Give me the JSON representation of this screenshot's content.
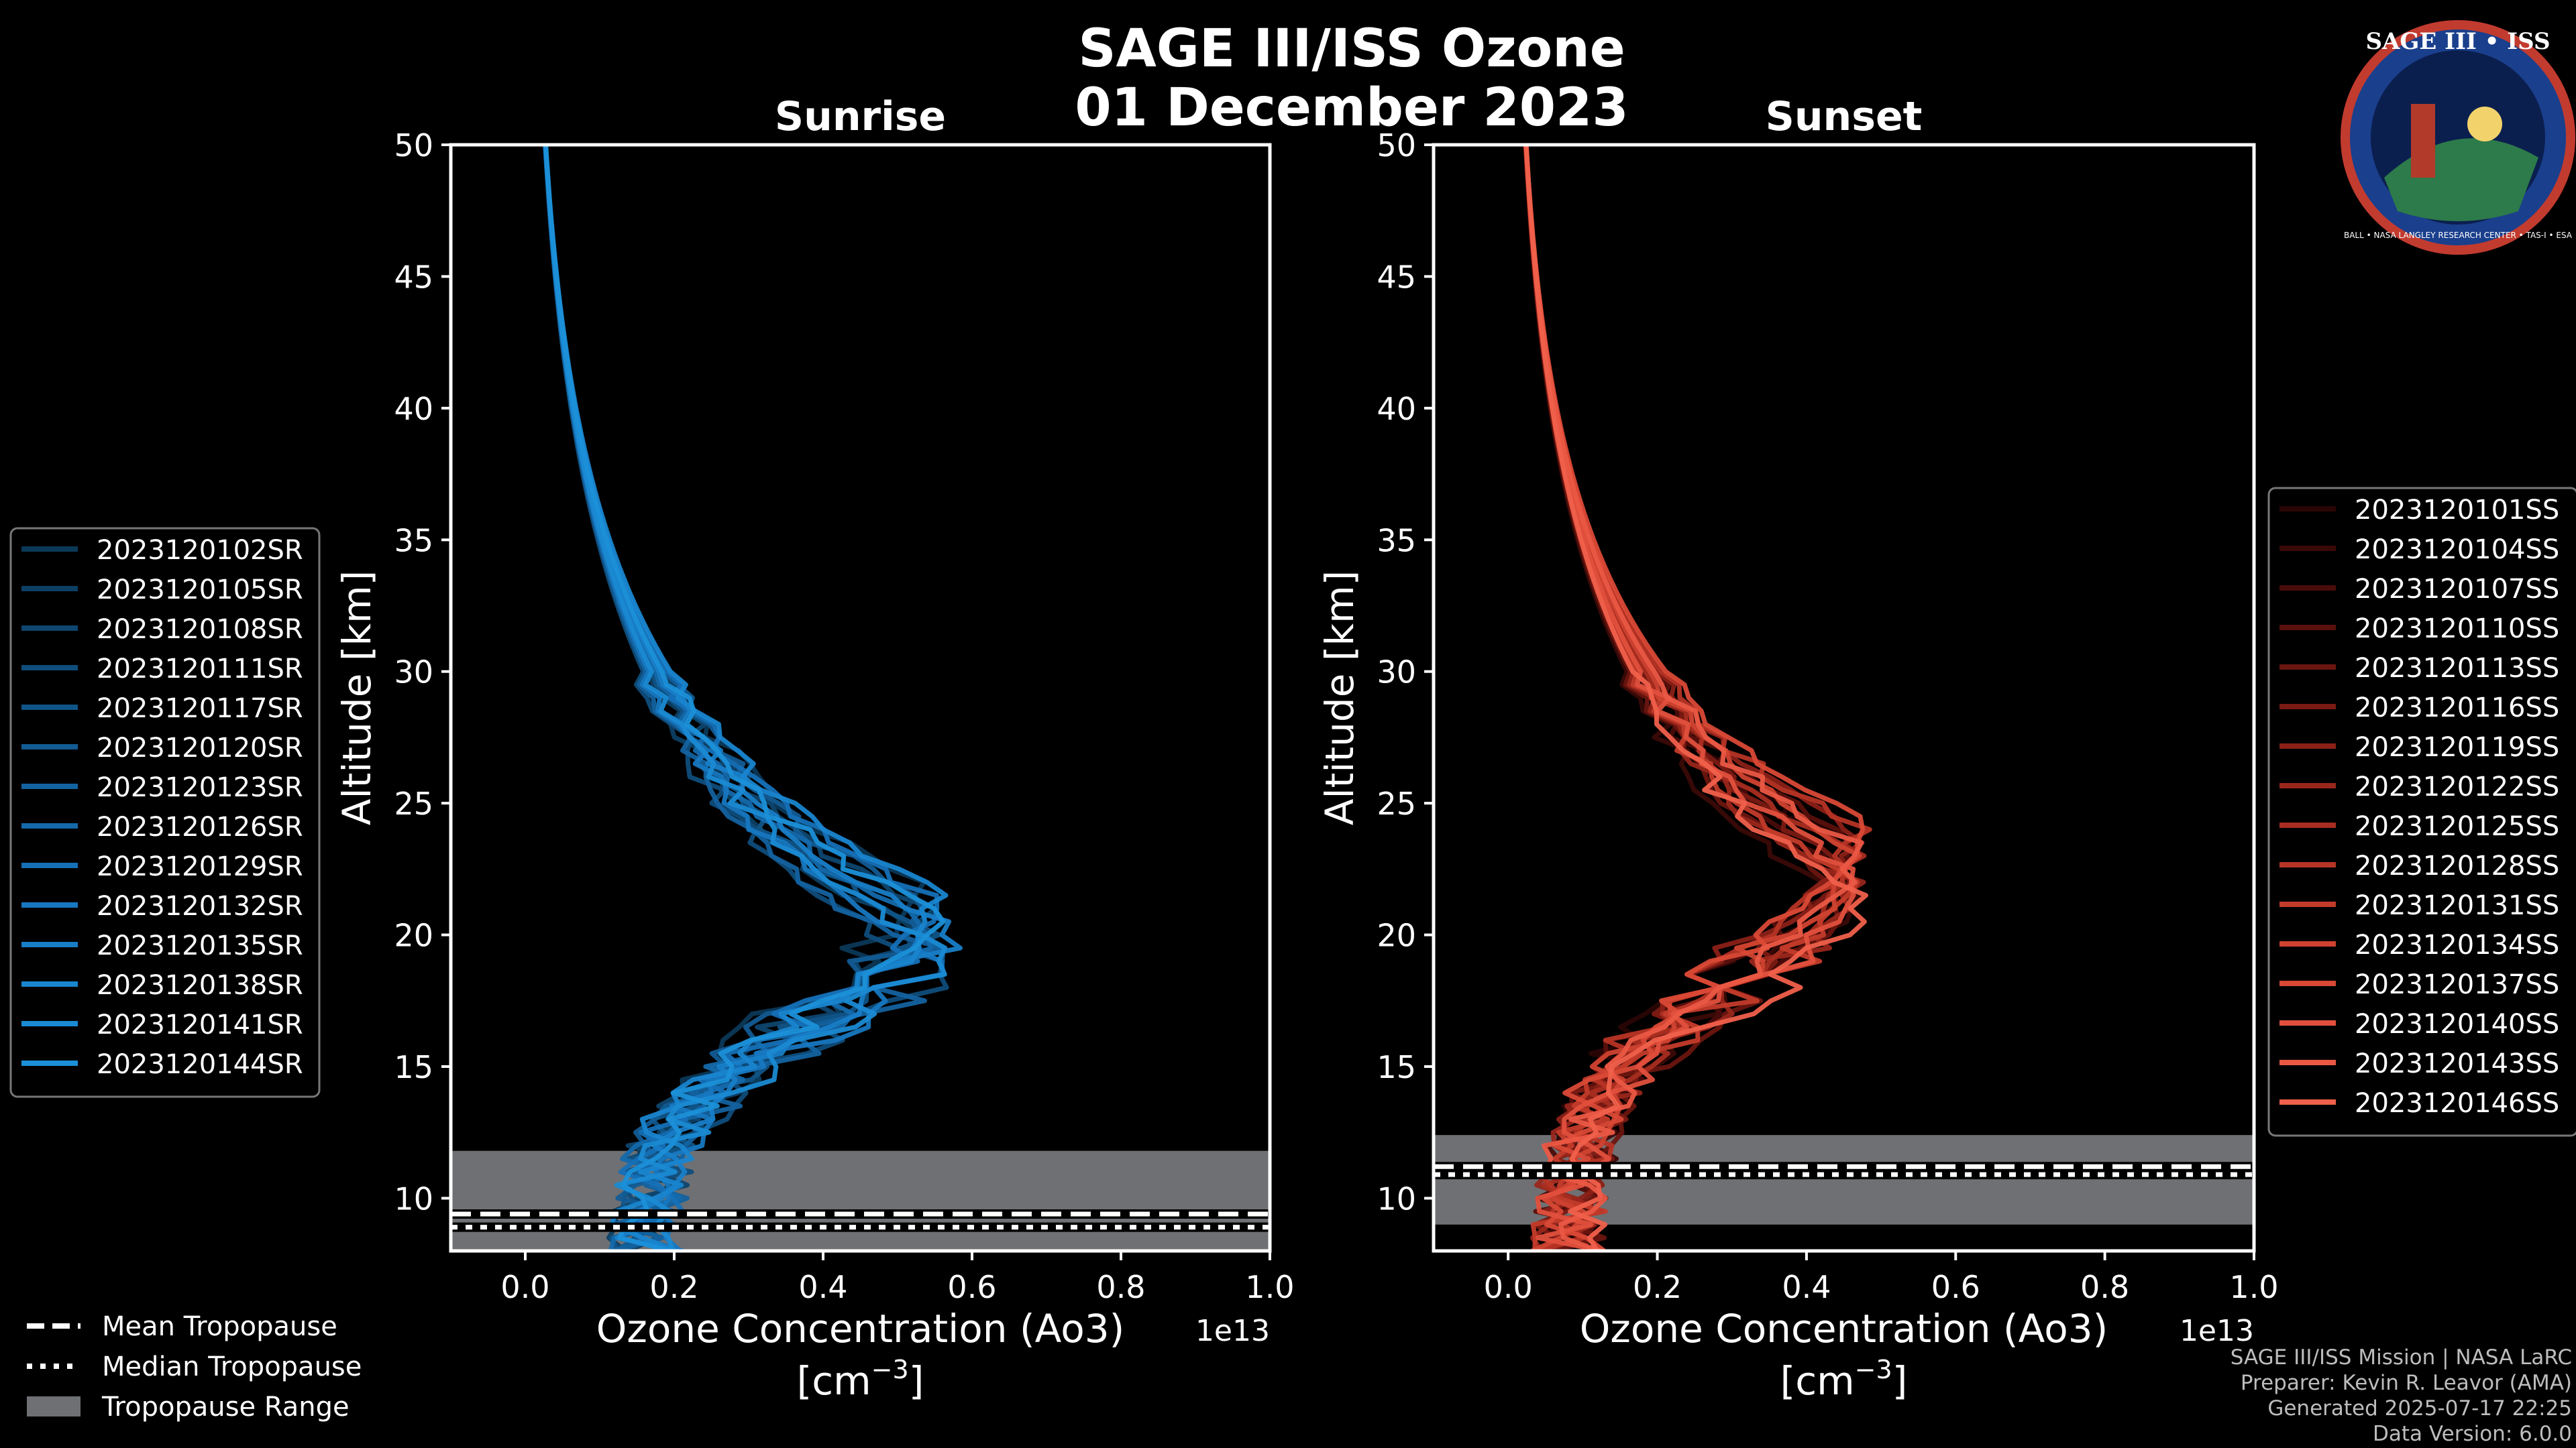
{
  "figure": {
    "title_line1": "SAGE III/ISS Ozone",
    "title_line2": "01 December 2023",
    "footer": [
      "SAGE III/ISS Mission | NASA LaRC",
      "Preparer: Kevin R. Leavor (AMA)",
      "Generated 2025-07-17 22:25",
      "Data Version: 6.0.0"
    ],
    "logo": {
      "text": "SAGE III • ISS",
      "ring_text": "BALL • NASA LANGLEY RESEARCH CENTER • TAS-I • ESA"
    },
    "colors": {
      "background": "#000000",
      "sunrise": "#1b8fd4",
      "sunset": "#e8503c",
      "trop_range": "#6e7073"
    }
  },
  "tropopause_legend": [
    {
      "label": "Mean Tropopause",
      "style": "dashed"
    },
    {
      "label": "Median Tropopause",
      "style": "dotted"
    },
    {
      "label": "Tropopause Range",
      "style": "band"
    }
  ],
  "chart_data": [
    {
      "type": "line",
      "title": "Sunrise",
      "xlabel": "Ozone Concentration (Ao3)",
      "xunits": "[cm",
      "xunits_sup": "−3",
      "xunits_close": "]",
      "ylabel": "Altitude [km]",
      "offset_label": "1e13",
      "xlim": [
        -0.1,
        1.0
      ],
      "ylim": [
        8,
        50
      ],
      "xticks": [
        "0.0",
        "0.2",
        "0.4",
        "0.6",
        "0.8",
        "1.0"
      ],
      "yticks": [
        "10",
        "15",
        "20",
        "25",
        "30",
        "35",
        "40",
        "45",
        "50"
      ],
      "tropopause": {
        "mean": 9.4,
        "median": 8.9,
        "range": [
          8.0,
          11.8
        ]
      },
      "shape": {
        "peak_x": 0.52,
        "peak_alt": 20.5,
        "low_x": 0.16
      },
      "series": [
        {
          "name": "2023120102SR",
          "color": "#0b3857"
        },
        {
          "name": "2023120105SR",
          "color": "#0c3f63"
        },
        {
          "name": "2023120108SR",
          "color": "#0e466f"
        },
        {
          "name": "2023120111SR",
          "color": "#0f4d7b"
        },
        {
          "name": "2023120117SR",
          "color": "#105487"
        },
        {
          "name": "2023120120SR",
          "color": "#125b93"
        },
        {
          "name": "2023120123SR",
          "color": "#13629f"
        },
        {
          "name": "2023120126SR",
          "color": "#1469ab"
        },
        {
          "name": "2023120129SR",
          "color": "#1570b7"
        },
        {
          "name": "2023120132SR",
          "color": "#1777c0"
        },
        {
          "name": "2023120135SR",
          "color": "#187ec8"
        },
        {
          "name": "2023120138SR",
          "color": "#1985cf"
        },
        {
          "name": "2023120141SR",
          "color": "#1a8ad3"
        },
        {
          "name": "2023120144SR",
          "color": "#1b90d8"
        }
      ]
    },
    {
      "type": "line",
      "title": "Sunset",
      "xlabel": "Ozone Concentration (Ao3)",
      "xunits": "[cm",
      "xunits_sup": "−3",
      "xunits_close": "]",
      "ylabel": "Altitude [km]",
      "offset_label": "1e13",
      "xlim": [
        -0.1,
        1.0
      ],
      "ylim": [
        8,
        50
      ],
      "xticks": [
        "0.0",
        "0.2",
        "0.4",
        "0.6",
        "0.8",
        "1.0"
      ],
      "yticks": [
        "10",
        "15",
        "20",
        "25",
        "30",
        "35",
        "40",
        "45",
        "50"
      ],
      "tropopause": {
        "mean": 11.2,
        "median": 10.9,
        "range": [
          9.0,
          12.4
        ]
      },
      "shape": {
        "peak_x": 0.51,
        "peak_alt": 23.0,
        "low_x": 0.08
      },
      "series": [
        {
          "name": "2023120101SS",
          "color": "#2a0505"
        },
        {
          "name": "2023120104SS",
          "color": "#3a0907"
        },
        {
          "name": "2023120107SS",
          "color": "#4a0c0a"
        },
        {
          "name": "2023120110SS",
          "color": "#5a100c"
        },
        {
          "name": "2023120113SS",
          "color": "#6a150f"
        },
        {
          "name": "2023120116SS",
          "color": "#7a1a13"
        },
        {
          "name": "2023120119SS",
          "color": "#8a2017"
        },
        {
          "name": "2023120122SS",
          "color": "#99261b"
        },
        {
          "name": "2023120125SS",
          "color": "#a82d20"
        },
        {
          "name": "2023120128SS",
          "color": "#b63425"
        },
        {
          "name": "2023120131SS",
          "color": "#c33b2a"
        },
        {
          "name": "2023120134SS",
          "color": "#cf4230"
        },
        {
          "name": "2023120137SS",
          "color": "#d94936"
        },
        {
          "name": "2023120140SS",
          "color": "#e2503d"
        },
        {
          "name": "2023120143SS",
          "color": "#ea5844"
        },
        {
          "name": "2023120146SS",
          "color": "#f0604b"
        }
      ]
    }
  ]
}
